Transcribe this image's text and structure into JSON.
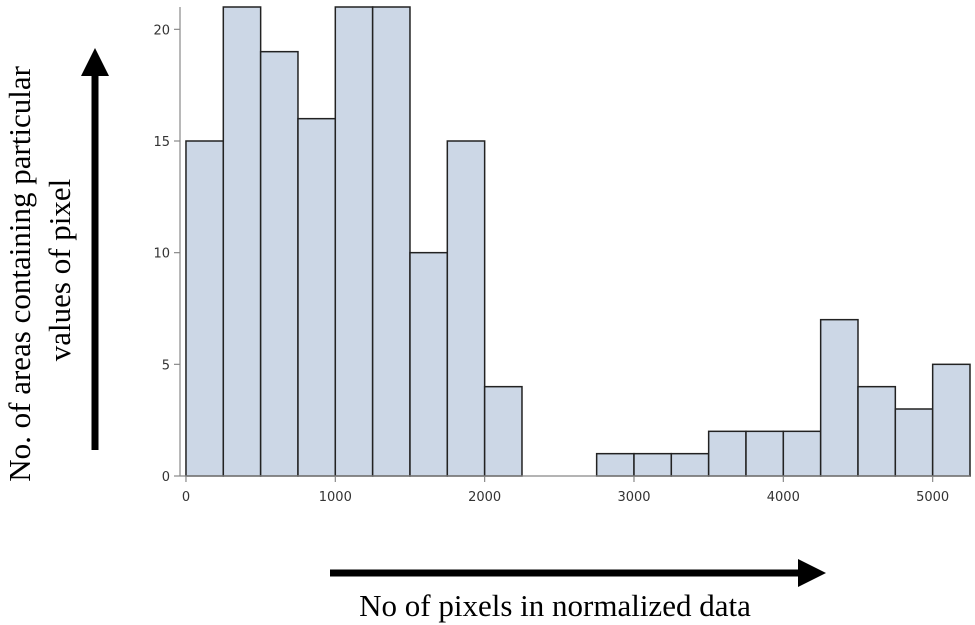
{
  "chart_data": {
    "type": "bar",
    "title": "",
    "xlabel": "No of pixels in normalized data",
    "ylabel_line1": "No. of areas containing particular",
    "ylabel_line2": "values of pixel",
    "bin_width": 250,
    "bin_starts": [
      0,
      250,
      500,
      750,
      1000,
      1250,
      1500,
      1750,
      2000,
      2250,
      2500,
      2750,
      3000,
      3250,
      3500,
      3750,
      4000,
      4250,
      4500,
      4750,
      5000
    ],
    "values": [
      15,
      21,
      19,
      16,
      21,
      21,
      10,
      15,
      4,
      0,
      0,
      1,
      1,
      1,
      2,
      2,
      2,
      7,
      4,
      3,
      5
    ],
    "xlim": [
      -40,
      5250
    ],
    "ylim": [
      0,
      21
    ],
    "x_ticks": [
      {
        "value": 0,
        "label": "0"
      },
      {
        "value": 1000,
        "label": "1000"
      },
      {
        "value": 2000,
        "label": "2000"
      },
      {
        "value": 3000,
        "label": "3000"
      },
      {
        "value": 4000,
        "label": "4000"
      },
      {
        "value": 5000,
        "label": "5000"
      }
    ],
    "y_ticks": [
      {
        "value": 0,
        "label": "0"
      },
      {
        "value": 5,
        "label": "5"
      },
      {
        "value": 10,
        "label": "10"
      },
      {
        "value": 15,
        "label": "15"
      },
      {
        "value": 20,
        "label": "20"
      }
    ],
    "grid": false,
    "bar_color": "#ccd7e6",
    "bar_edge_color": "#222222"
  }
}
